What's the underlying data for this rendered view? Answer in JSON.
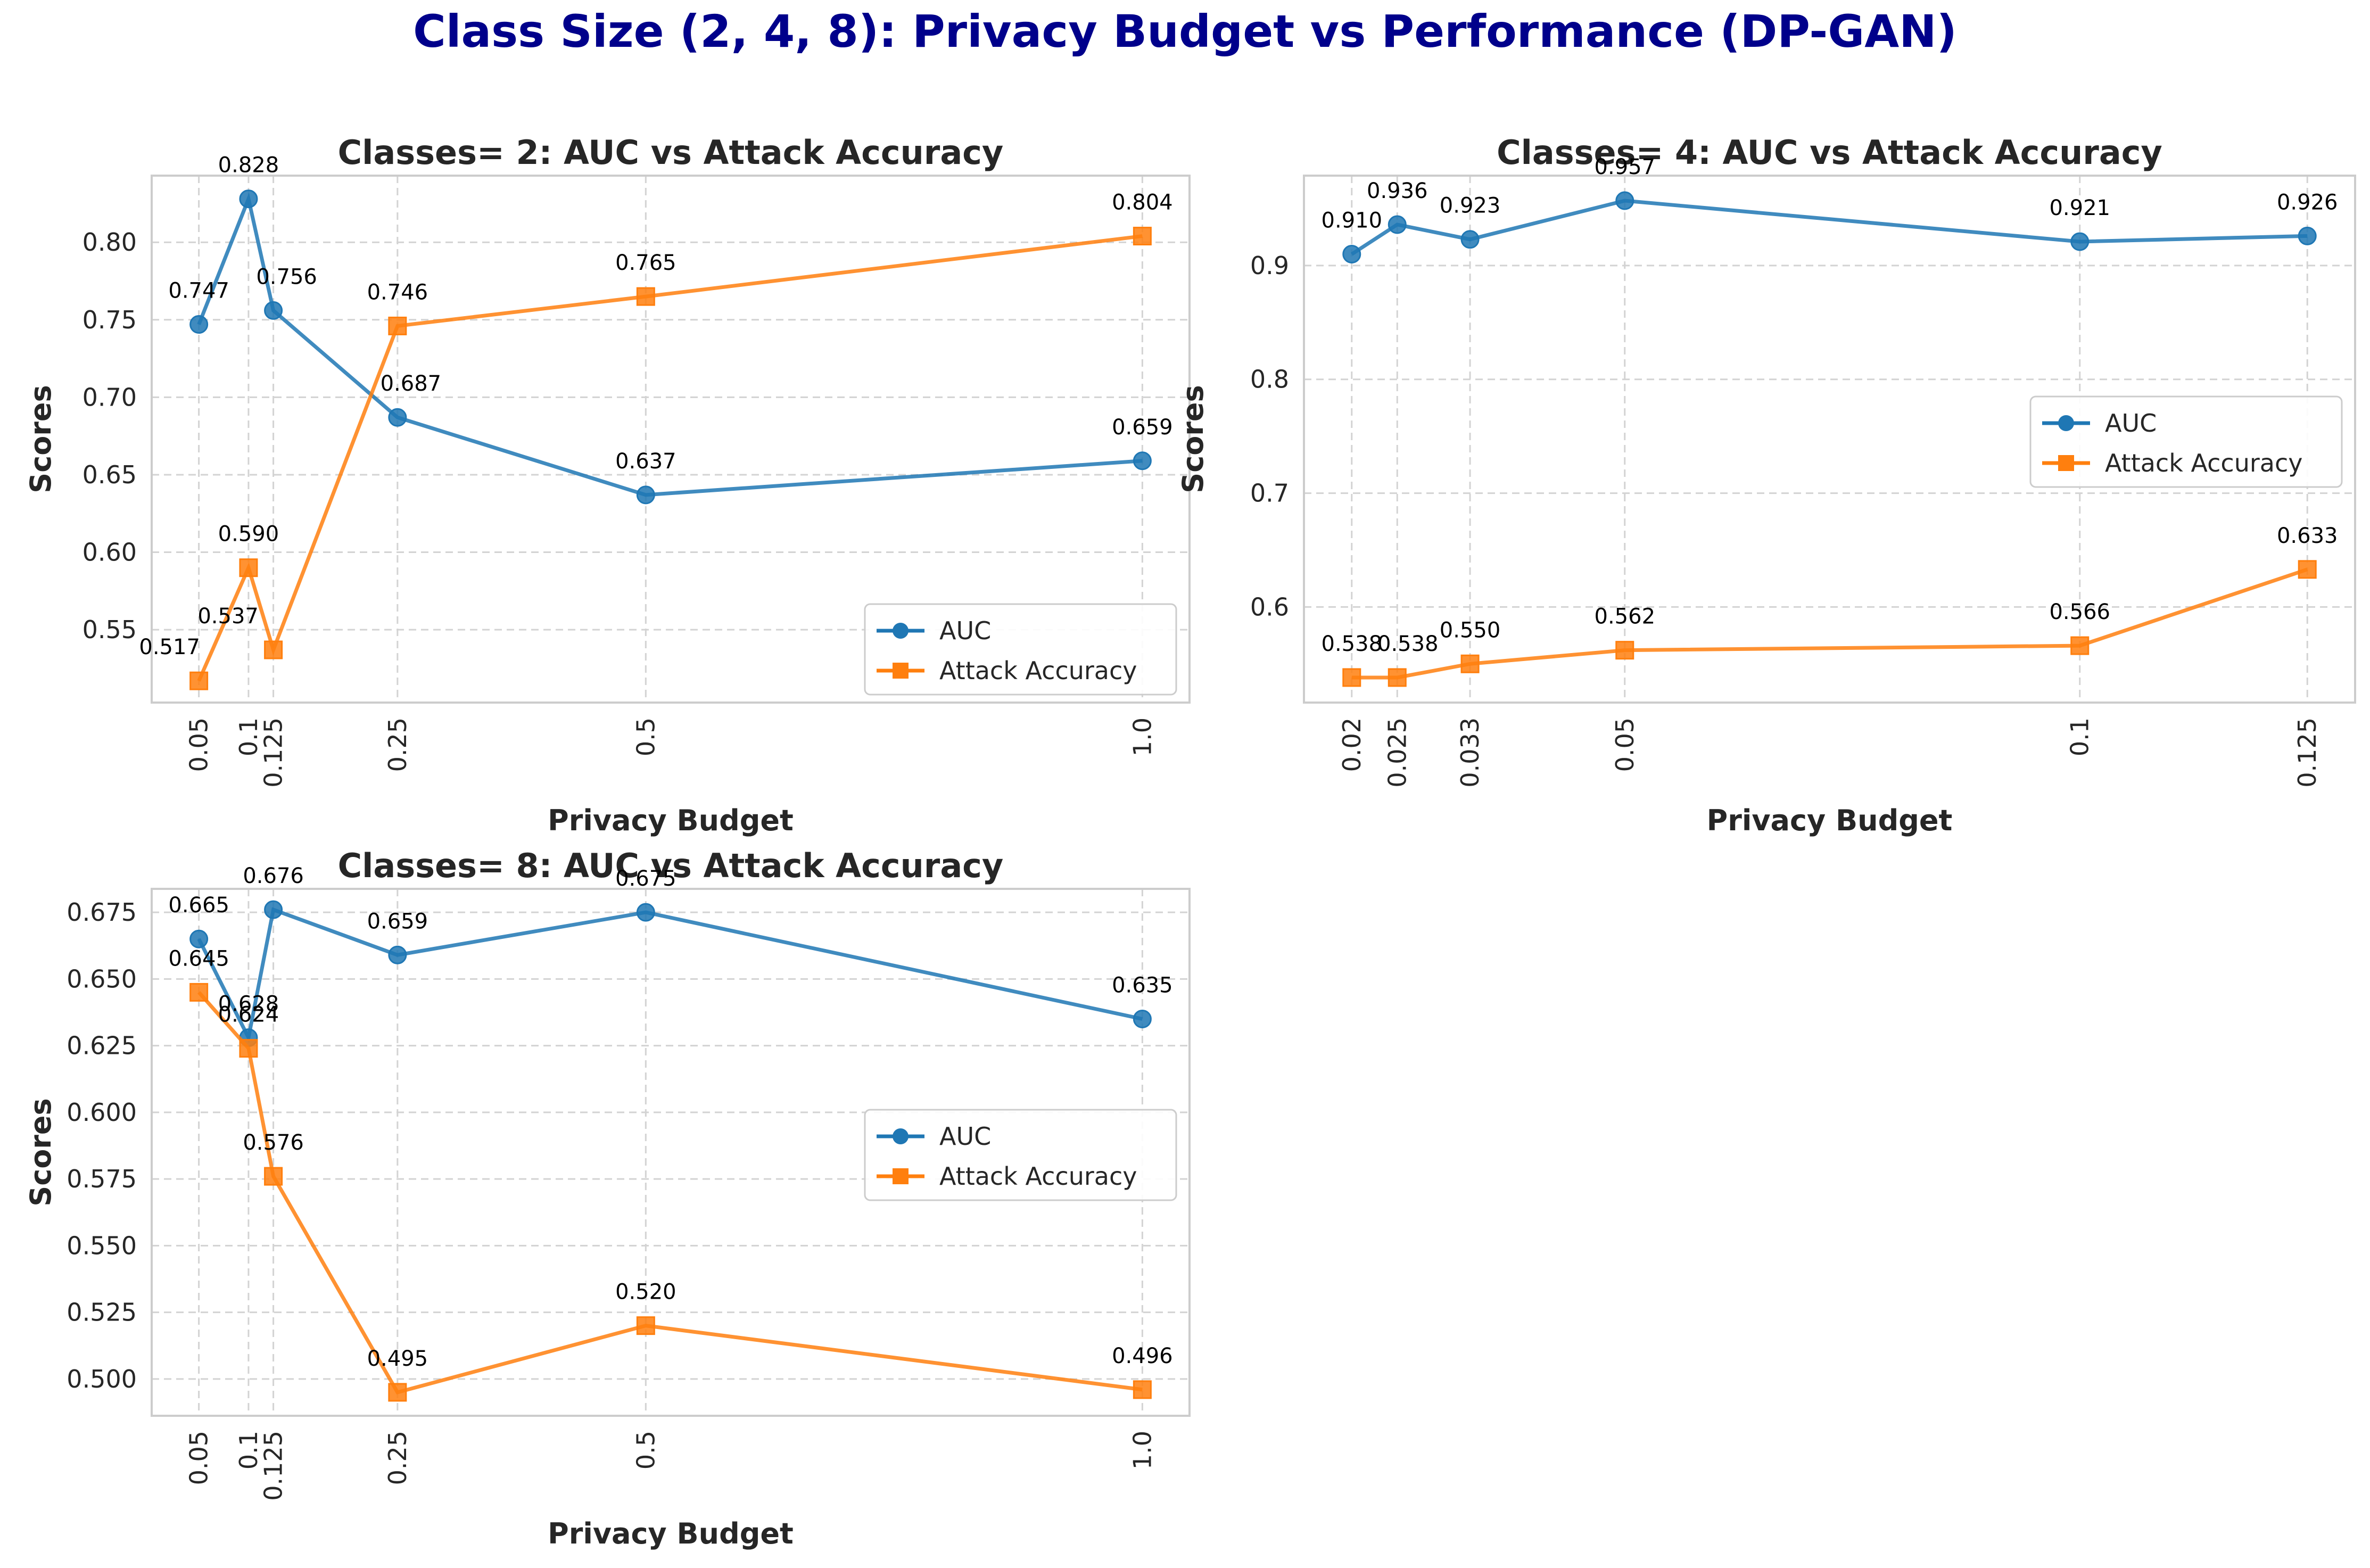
{
  "title": "Class Size (2, 4, 8): Privacy Budget vs Performance (DP-GAN)",
  "colors": {
    "title": "#00008b",
    "auc": "#1f77b4",
    "attack": "#ff7f0e",
    "grid": "#d3d3d3",
    "spine": "#cccccc",
    "text": "#262626"
  },
  "chart_data": [
    {
      "type": "line",
      "title": "Classes= 2: AUC vs Attack Accuracy",
      "xlabel": "Privacy Budget",
      "ylabel": "Scores",
      "x": [
        0.05,
        0.1,
        0.125,
        0.25,
        0.5,
        1.0
      ],
      "x_tick_labels": [
        "0.05",
        "0.1",
        "0.125",
        "0.25",
        "0.5",
        "1.0"
      ],
      "ylim": [
        0.503,
        0.843
      ],
      "y_ticks": [
        0.55,
        0.6,
        0.65,
        0.7,
        0.75,
        0.8
      ],
      "y_tick_labels": [
        "0.55",
        "0.60",
        "0.65",
        "0.70",
        "0.75",
        "0.80"
      ],
      "series": [
        {
          "name": "AUC",
          "values": [
            0.747,
            0.828,
            0.756,
            0.687,
            0.637,
            0.659
          ],
          "labels": [
            "0.747",
            "0.828",
            "0.756",
            "0.687",
            "0.637",
            "0.659"
          ]
        },
        {
          "name": "Attack Accuracy",
          "values": [
            0.517,
            0.59,
            0.537,
            0.746,
            0.765,
            0.804
          ],
          "labels": [
            "0.517",
            "0.590",
            "0.537",
            "0.746",
            "0.765",
            "0.804"
          ]
        }
      ],
      "grid": true,
      "legend": "lower right"
    },
    {
      "type": "line",
      "title": "Classes= 4: AUC vs Attack Accuracy",
      "xlabel": "Privacy Budget",
      "ylabel": "Scores",
      "x": [
        0.02,
        0.025,
        0.033,
        0.05,
        0.1,
        0.125
      ],
      "x_tick_labels": [
        "0.02",
        "0.025",
        "0.033",
        "0.05",
        "0.1",
        "0.125"
      ],
      "ylim": [
        0.516,
        0.979
      ],
      "y_ticks": [
        0.6,
        0.7,
        0.8,
        0.9
      ],
      "y_tick_labels": [
        "0.6",
        "0.7",
        "0.8",
        "0.9"
      ],
      "series": [
        {
          "name": "AUC",
          "values": [
            0.91,
            0.936,
            0.923,
            0.957,
            0.921,
            0.926
          ],
          "labels": [
            "0.910",
            "0.936",
            "0.923",
            "0.957",
            "0.921",
            "0.926"
          ]
        },
        {
          "name": "Attack Accuracy",
          "values": [
            0.538,
            0.538,
            0.55,
            0.562,
            0.566,
            0.633
          ],
          "labels": [
            "0.538",
            "0.538",
            "0.550",
            "0.562",
            "0.566",
            "0.633"
          ]
        }
      ],
      "grid": true,
      "legend": "center right"
    },
    {
      "type": "line",
      "title": "Classes= 8: AUC vs Attack Accuracy",
      "xlabel": "Privacy Budget",
      "ylabel": "Scores",
      "x": [
        0.05,
        0.1,
        0.125,
        0.25,
        0.5,
        1.0
      ],
      "x_tick_labels": [
        "0.05",
        "0.1",
        "0.125",
        "0.25",
        "0.5",
        "1.0"
      ],
      "ylim": [
        0.4862,
        0.6838
      ],
      "y_ticks": [
        0.5,
        0.525,
        0.55,
        0.575,
        0.6,
        0.625,
        0.65,
        0.675
      ],
      "y_tick_labels": [
        "0.500",
        "0.525",
        "0.550",
        "0.575",
        "0.600",
        "0.625",
        "0.650",
        "0.675"
      ],
      "series": [
        {
          "name": "AUC",
          "values": [
            0.665,
            0.628,
            0.676,
            0.659,
            0.675,
            0.635
          ],
          "labels": [
            "0.665",
            "0.628",
            "0.676",
            "0.659",
            "0.675",
            "0.635"
          ]
        },
        {
          "name": "Attack Accuracy",
          "values": [
            0.645,
            0.624,
            0.576,
            0.495,
            0.52,
            0.496
          ],
          "labels": [
            "0.645",
            "0.624",
            "0.576",
            "0.495",
            "0.520",
            "0.496"
          ]
        }
      ],
      "grid": true,
      "legend": "center right"
    }
  ]
}
